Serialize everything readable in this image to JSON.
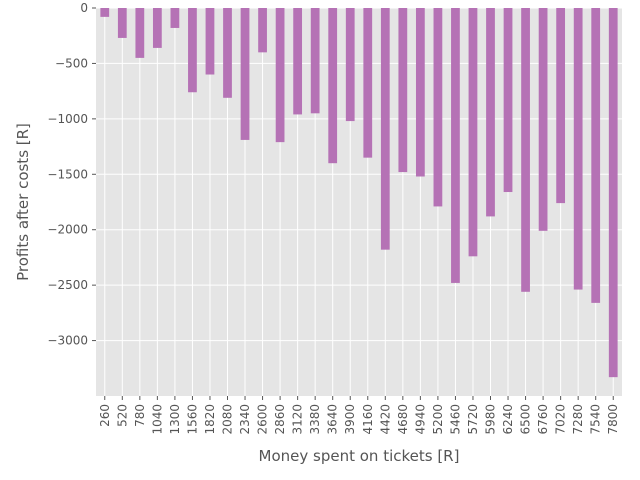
{
  "chart_data": {
    "type": "bar",
    "xlabel": "Money spent on tickets [R]",
    "ylabel": "Profits after costs [R]",
    "categories": [
      "260",
      "520",
      "780",
      "1040",
      "1300",
      "1560",
      "1820",
      "2080",
      "2340",
      "2600",
      "2860",
      "3120",
      "3380",
      "3640",
      "3900",
      "4160",
      "4420",
      "4680",
      "4940",
      "5200",
      "5460",
      "5720",
      "5980",
      "6240",
      "6500",
      "6760",
      "7020",
      "7280",
      "7540",
      "7800"
    ],
    "values": [
      -80,
      -270,
      -450,
      -360,
      -180,
      -760,
      -600,
      -810,
      -1190,
      -400,
      -1210,
      -960,
      -950,
      -1400,
      -1020,
      -1350,
      -2180,
      -1480,
      -1520,
      -1790,
      -2480,
      -2240,
      -1880,
      -1660,
      -2560,
      -2010,
      -1760,
      -2540,
      -2660,
      -3330
    ],
    "ylim": [
      -3500,
      0
    ],
    "yticks": [
      0,
      -500,
      -1000,
      -1500,
      -2000,
      -2500,
      -3000
    ],
    "ytick_labels": [
      "0",
      "−500",
      "−1000",
      "−1500",
      "−2000",
      "−2500",
      "−3000"
    ],
    "grid": true,
    "colors": {
      "bar": "#b572b5",
      "background": "#e5e5e5",
      "grid": "#ffffff"
    }
  }
}
